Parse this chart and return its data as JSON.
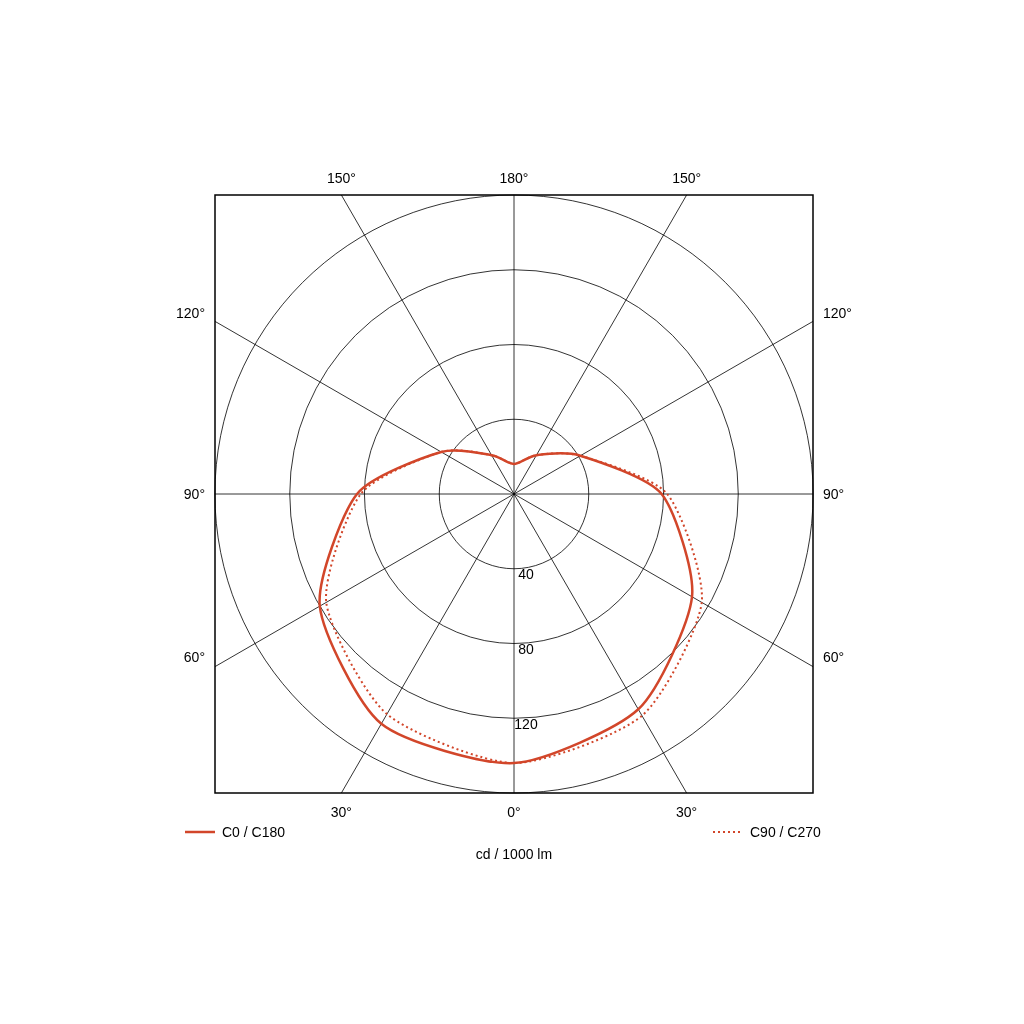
{
  "chart_data": {
    "type": "radar",
    "ylabel": "cd / 1000 lm",
    "categories": [
      "180°",
      "150°",
      "120°",
      "90°",
      "60°",
      "30°",
      "0°",
      "30°",
      "60°",
      "90°",
      "120°",
      "150°"
    ],
    "ylim": [
      0,
      160
    ],
    "yticks": [
      40,
      80,
      120
    ],
    "grid": true,
    "legend": "bottom",
    "series": [
      {
        "name": "C0 / C180",
        "color": "#d2462a",
        "line_style": "solid",
        "values": [
          16,
          24,
          41,
          79,
          110,
          133,
          144,
          142,
          120,
          84,
          45,
          24
        ]
      },
      {
        "name": "C90 / C270",
        "color": "#d2462a",
        "line_style": "dotted",
        "values": [
          16,
          24,
          41,
          82,
          116,
          137,
          144,
          136,
          116,
          82,
          45,
          24
        ]
      }
    ]
  }
}
